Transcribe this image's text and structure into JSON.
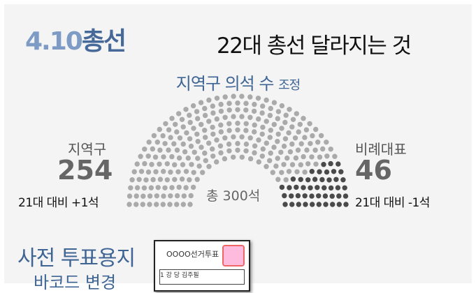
{
  "header": {
    "brand_number": "4.10",
    "brand_word": "총선",
    "headline": "22대 총선 달라지는 것"
  },
  "section": {
    "title_main": "지역구 의석 수",
    "title_suffix": "조정"
  },
  "left": {
    "label": "지역구",
    "value": "254",
    "comparison": "21대 대비 +1석"
  },
  "right": {
    "label": "비례대표",
    "value": "46",
    "comparison": "21대 대비 -1석"
  },
  "total_label": "총 300석",
  "ballot": {
    "title": "사전 투표용지",
    "subtitle": "바코드 변경",
    "ballot_heading": "OOOO선거투표",
    "ballot_row": "1  강  당   김주필"
  },
  "colors": {
    "district": "#aaaaaa",
    "proportional": "#4a4a4a",
    "accent": "#3f6595"
  },
  "chart_data": {
    "type": "parliament",
    "total": 300,
    "series": [
      {
        "name": "지역구",
        "values": [
          254
        ],
        "color": "#aaaaaa"
      },
      {
        "name": "비례대표",
        "values": [
          46
        ],
        "color": "#4a4a4a"
      }
    ]
  }
}
